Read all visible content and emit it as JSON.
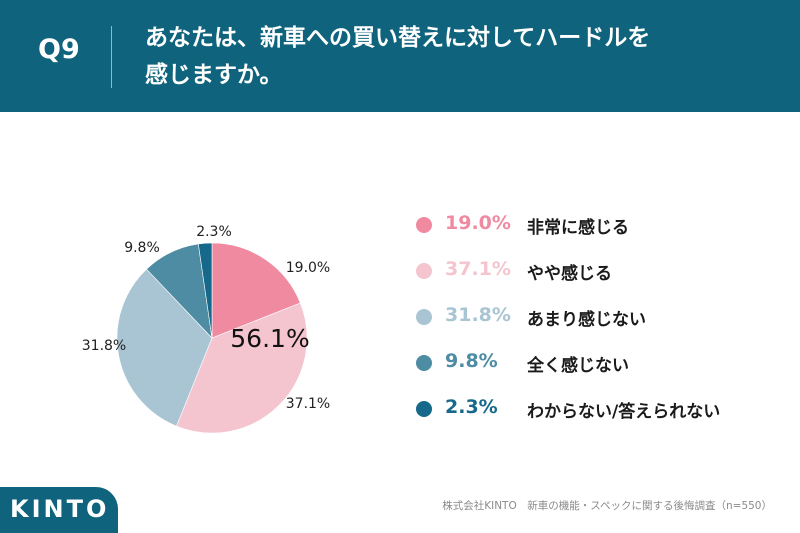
{
  "header": {
    "question_number": "Q9",
    "question_line1": "あなたは、新車への買い替えに対してハードルを",
    "question_line2": "感じますか。"
  },
  "chart_data": {
    "type": "pie",
    "center_label": "56.1%",
    "categories": [
      "非常に感じる",
      "やや感じる",
      "あまり感じない",
      "全く感じない",
      "わからない/答えられない"
    ],
    "values": [
      19.0,
      37.1,
      31.8,
      9.8,
      2.3
    ],
    "value_labels": [
      "19.0%",
      "37.1%",
      "31.8%",
      "9.8%",
      "2.3%"
    ],
    "colors": [
      "#f08aa0",
      "#f4c4cf",
      "#a9c5d3",
      "#4d8ca3",
      "#16698a"
    ],
    "legend_position": "right"
  },
  "legend": [
    {
      "pct": "19.0%",
      "label": "非常に感じる",
      "color": "#f08aa0"
    },
    {
      "pct": "37.1%",
      "label": "やや感じる",
      "color": "#f4c4cf"
    },
    {
      "pct": "31.8%",
      "label": "あまり感じない",
      "color": "#a9c5d3"
    },
    {
      "pct": "9.8%",
      "label": "全く感じない",
      "color": "#4d8ca3"
    },
    {
      "pct": "2.3%",
      "label": "わからない/答えられない",
      "color": "#16698a"
    }
  ],
  "footer": {
    "logo": "KINTO",
    "source": "株式会社KINTO　新車の機能・スペックに関する後悔調査（n=550）"
  },
  "theme": {
    "brand_color": "#0f637c"
  }
}
